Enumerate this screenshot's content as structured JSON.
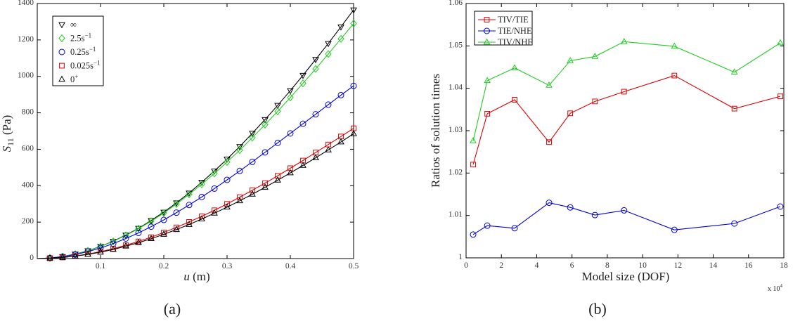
{
  "chart_data": [
    {
      "type": "line",
      "panel_label": "(a)",
      "xlabel_var": "u",
      "xlabel_unit": " (m)",
      "ylabel_var": "S",
      "ylabel_sub": "11",
      "ylabel_unit": " (Pa)",
      "xlim": [
        0,
        0.5
      ],
      "ylim": [
        0,
        1400
      ],
      "xticks": [
        0.1,
        0.2,
        0.3,
        0.4,
        0.5
      ],
      "xtick_labels": [
        "0.1",
        "0.2",
        "0.3",
        "0.4",
        "0.5"
      ],
      "yticks": [
        0,
        200,
        400,
        600,
        800,
        1000,
        1200,
        1400
      ],
      "ytick_labels": [
        "0",
        "200",
        "400",
        "600",
        "800",
        "1000",
        "1200",
        "1400"
      ],
      "legend_position": "top-left",
      "x": [
        0.02,
        0.04,
        0.06,
        0.08,
        0.1,
        0.12,
        0.14,
        0.16,
        0.18,
        0.2,
        0.22,
        0.24,
        0.26,
        0.28,
        0.3,
        0.32,
        0.34,
        0.36,
        0.38,
        0.4,
        0.42,
        0.44,
        0.46,
        0.48,
        0.5
      ],
      "series": [
        {
          "name": "∞",
          "sup": "",
          "color": "#000000",
          "marker": "triangle-down",
          "values": [
            3,
            11,
            25,
            43,
            67,
            95,
            129,
            166,
            209,
            255,
            306,
            360,
            419,
            481,
            546,
            615,
            688,
            763,
            841,
            922,
            1006,
            1093,
            1181,
            1272,
            1365
          ]
        },
        {
          "name": "2.5s",
          "sup": "−1",
          "color": "#22cc22",
          "marker": "diamond",
          "values": [
            3,
            11,
            24,
            43,
            66,
            94,
            127,
            164,
            205,
            250,
            299,
            352,
            408,
            467,
            530,
            595,
            664,
            735,
            808,
            884,
            962,
            1041,
            1123,
            1206,
            1290
          ]
        },
        {
          "name": "0.25s",
          "sup": "−1",
          "color": "#0000dd",
          "marker": "circle",
          "values": [
            3,
            10,
            22,
            38,
            58,
            82,
            110,
            141,
            175,
            212,
            252,
            294,
            338,
            384,
            432,
            481,
            531,
            583,
            635,
            687,
            740,
            792,
            845,
            897,
            948
          ]
        },
        {
          "name": "0.025s",
          "sup": "−1",
          "color": "#dd0000",
          "marker": "square",
          "values": [
            2,
            6,
            14,
            25,
            38,
            54,
            73,
            94,
            117,
            143,
            171,
            201,
            232,
            265,
            300,
            337,
            375,
            414,
            454,
            496,
            538,
            582,
            626,
            670,
            715
          ]
        },
        {
          "name": "0",
          "sup": "+",
          "color": "#000000",
          "marker": "triangle-up",
          "values": [
            2,
            6,
            13,
            23,
            35,
            50,
            68,
            87,
            109,
            133,
            159,
            187,
            217,
            249,
            282,
            317,
            353,
            391,
            430,
            470,
            511,
            553,
            596,
            640,
            685
          ]
        }
      ]
    },
    {
      "type": "line",
      "panel_label": "(b)",
      "xlabel": "Model size (DOF)",
      "ylabel": "Ratios of solution times",
      "x_multiplier": "x 10",
      "x_multiplier_exp": "4",
      "xlim": [
        0,
        18
      ],
      "ylim": [
        1.0,
        1.06
      ],
      "xticks": [
        0,
        2,
        4,
        6,
        8,
        10,
        12,
        14,
        16,
        18
      ],
      "xtick_labels": [
        "0",
        "2",
        "4",
        "6",
        "8",
        "10",
        "12",
        "14",
        "16",
        "18"
      ],
      "yticks": [
        1.0,
        1.01,
        1.02,
        1.03,
        1.04,
        1.05,
        1.06
      ],
      "ytick_labels": [
        "1",
        "1.01",
        "1.02",
        "1.03",
        "1.04",
        "1.05",
        "1.06"
      ],
      "legend_position": "top-left",
      "x": [
        0.4,
        1.2,
        2.75,
        4.7,
        5.9,
        7.3,
        8.95,
        11.8,
        15.2,
        17.8
      ],
      "series": [
        {
          "name": "TIV/TIE",
          "color": "#dd0000",
          "marker": "square",
          "values": [
            1.022,
            1.034,
            1.0373,
            1.0273,
            1.0341,
            1.0369,
            1.0392,
            1.043,
            1.0352,
            1.0381
          ]
        },
        {
          "name": "TIE/NHE",
          "color": "#0000dd",
          "marker": "circle",
          "values": [
            1.0055,
            1.0076,
            1.007,
            1.013,
            1.0119,
            1.0101,
            1.0112,
            1.0066,
            1.0081,
            1.0121
          ]
        },
        {
          "name": "TIV/NHE",
          "color": "#22cc22",
          "marker": "triangle-up",
          "values": [
            1.0276,
            1.0418,
            1.0448,
            1.0407,
            1.0465,
            1.0475,
            1.051,
            1.0499,
            1.0438,
            1.0507
          ]
        }
      ]
    }
  ]
}
